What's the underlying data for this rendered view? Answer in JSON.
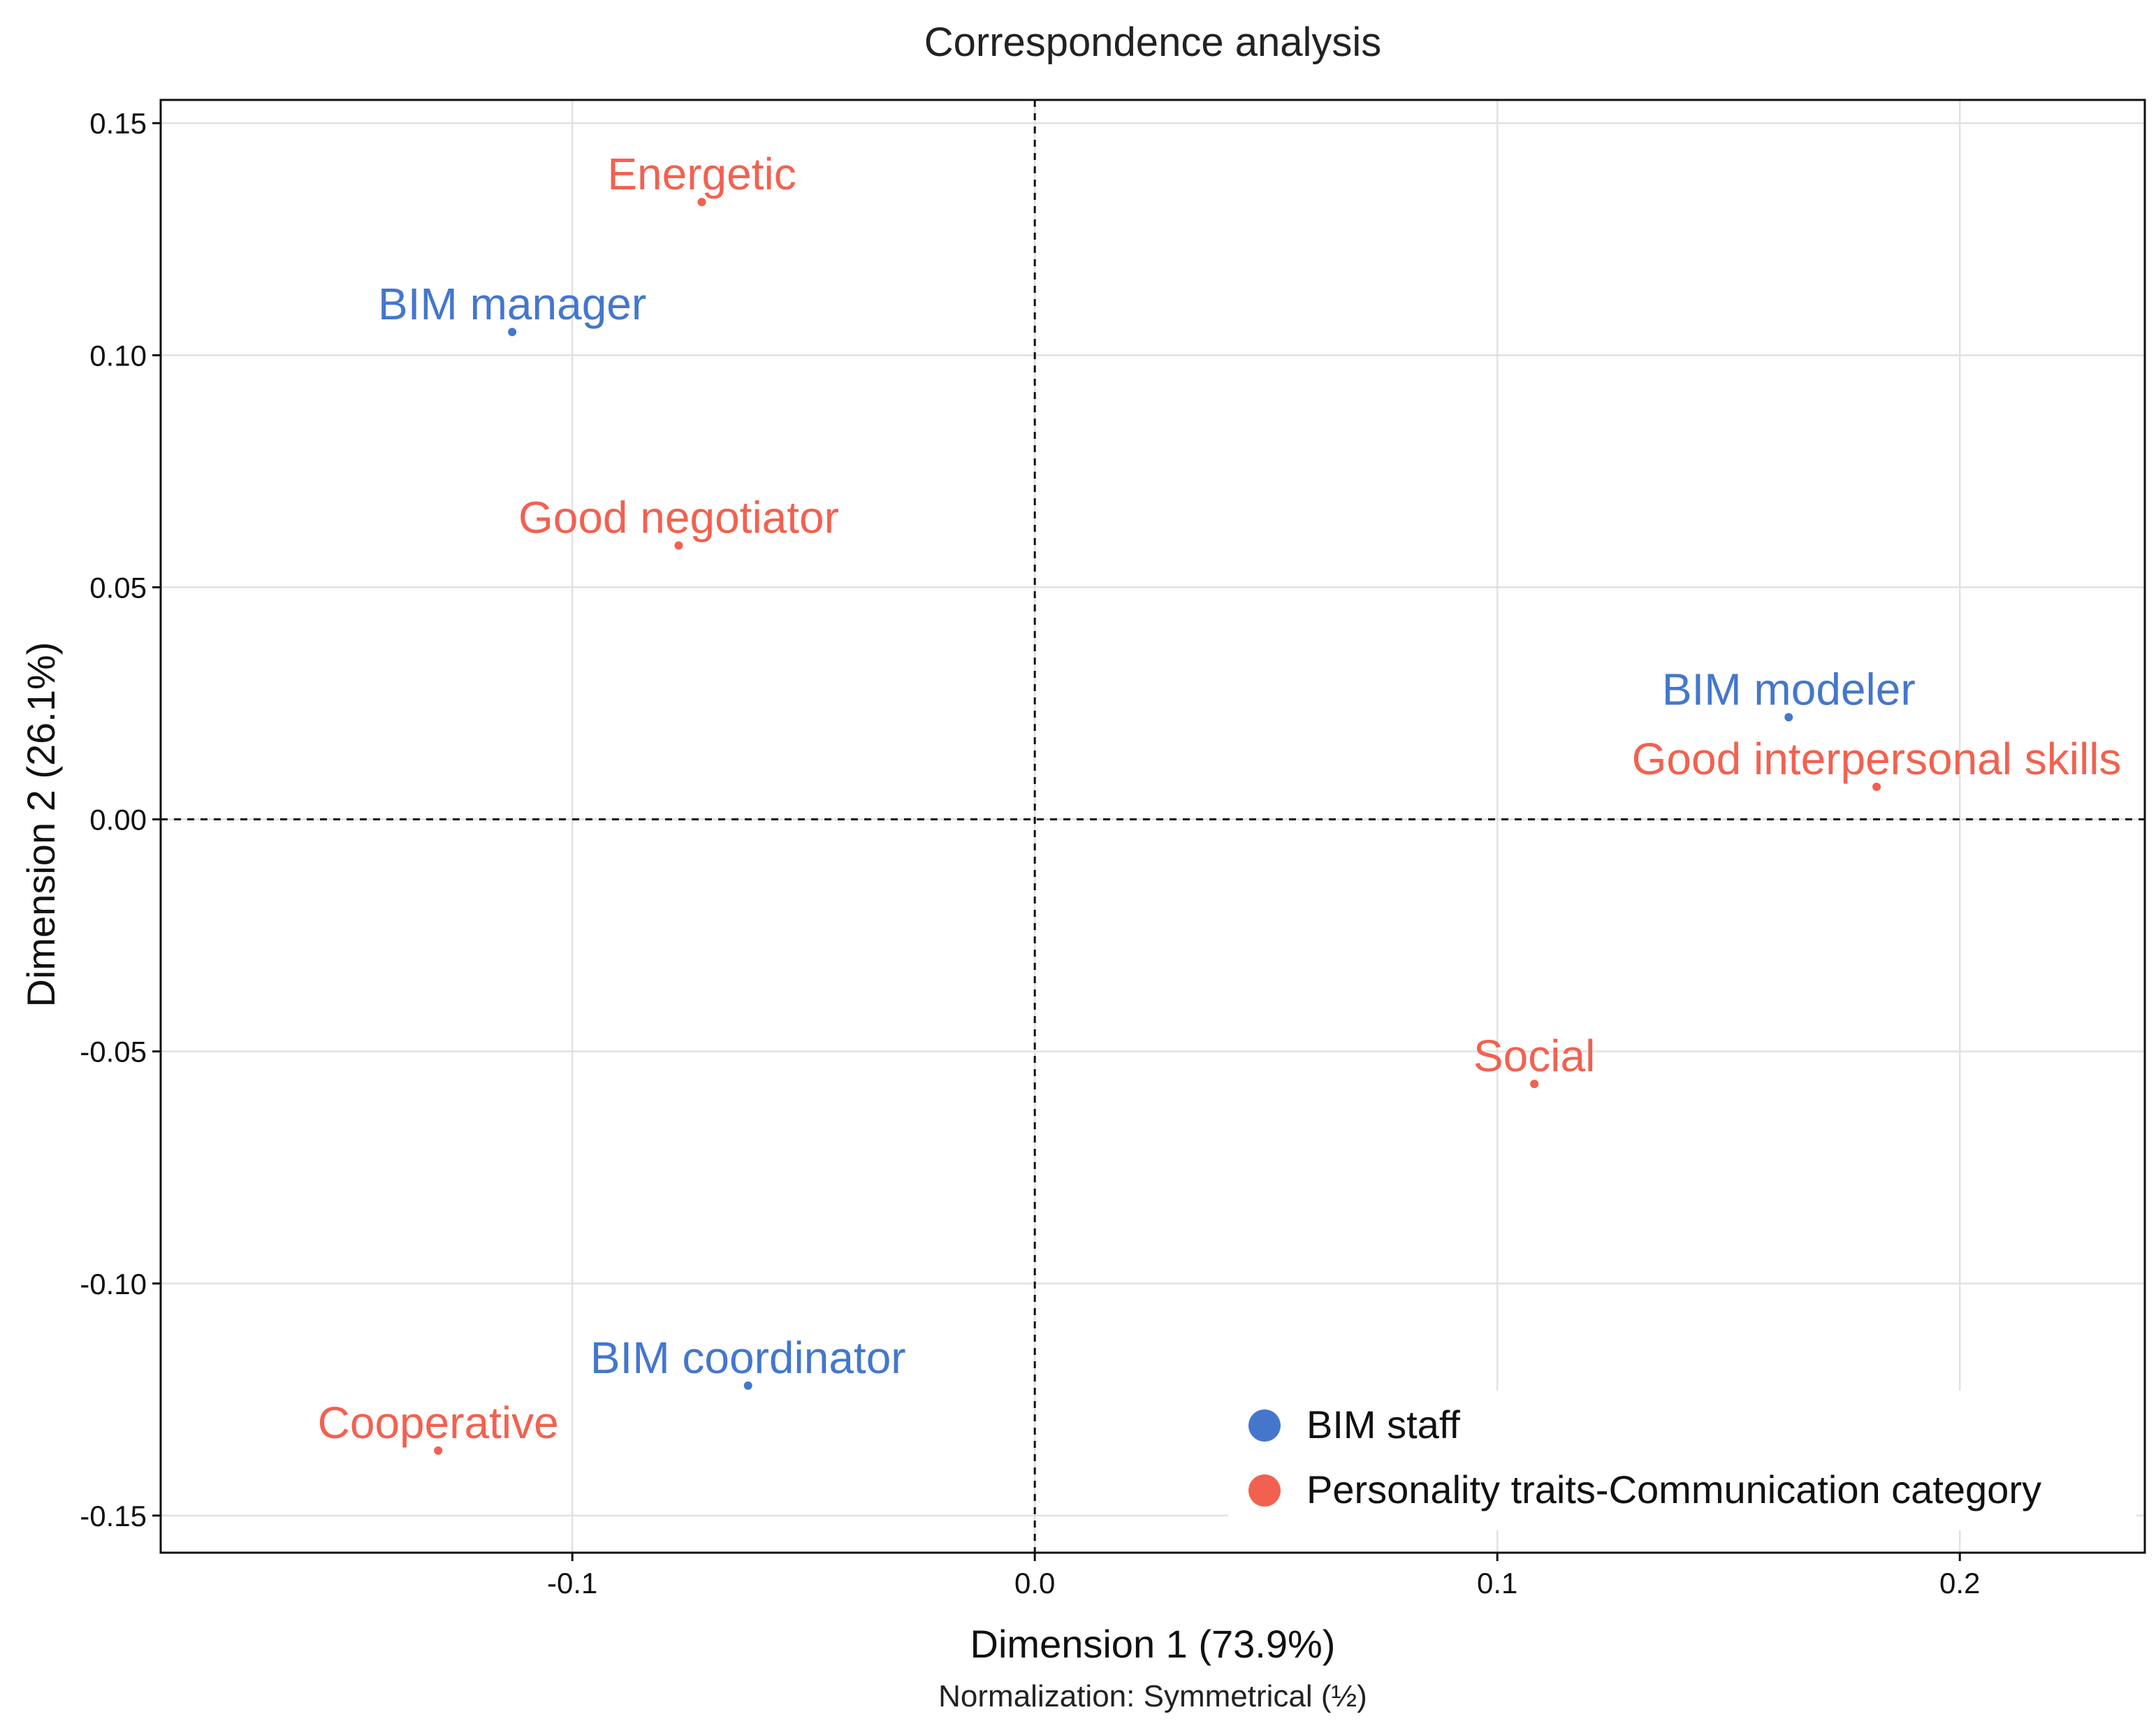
{
  "chart_data": {
    "type": "scatter",
    "title": "Correspondence analysis",
    "xlabel": "Dimension 1 (73.9%)",
    "ylabel": "Dimension 2 (26.1%)",
    "caption": "Normalization: Symmetrical (½)",
    "xlim": [
      -0.189,
      0.24
    ],
    "ylim": [
      -0.158,
      0.155
    ],
    "x_ticks": [
      -0.1,
      0.0,
      0.1,
      0.2
    ],
    "x_tick_labels": [
      "-0.1",
      "0.0",
      "0.1",
      "0.2"
    ],
    "y_ticks": [
      0.15,
      0.1,
      0.05,
      0.0,
      -0.05,
      -0.1,
      -0.15
    ],
    "y_tick_labels": [
      "0.15",
      "0.10",
      "0.05",
      "0.00",
      "-0.05",
      "-0.10",
      "-0.15"
    ],
    "grid": true,
    "reference_lines": {
      "x": 0,
      "y": 0,
      "style": "dashed"
    },
    "legend_position": "bottom-right",
    "series": [
      {
        "name": "BIM staff",
        "color": "#4477cc",
        "points": [
          {
            "label": "BIM manager",
            "x": -0.113,
            "y": 0.105
          },
          {
            "label": "BIM modeler",
            "x": 0.163,
            "y": 0.022
          },
          {
            "label": "BIM coordinator",
            "x": -0.062,
            "y": -0.122
          }
        ]
      },
      {
        "name": "Personality traits-Communication category",
        "color": "#f26150",
        "points": [
          {
            "label": "Energetic",
            "x": -0.072,
            "y": 0.133
          },
          {
            "label": "Good negotiator",
            "x": -0.077,
            "y": 0.059
          },
          {
            "label": "Good interpersonal skills",
            "x": 0.182,
            "y": 0.007
          },
          {
            "label": "Social",
            "x": 0.108,
            "y": -0.057
          },
          {
            "label": "Cooperative",
            "x": -0.129,
            "y": -0.136
          }
        ]
      }
    ]
  }
}
